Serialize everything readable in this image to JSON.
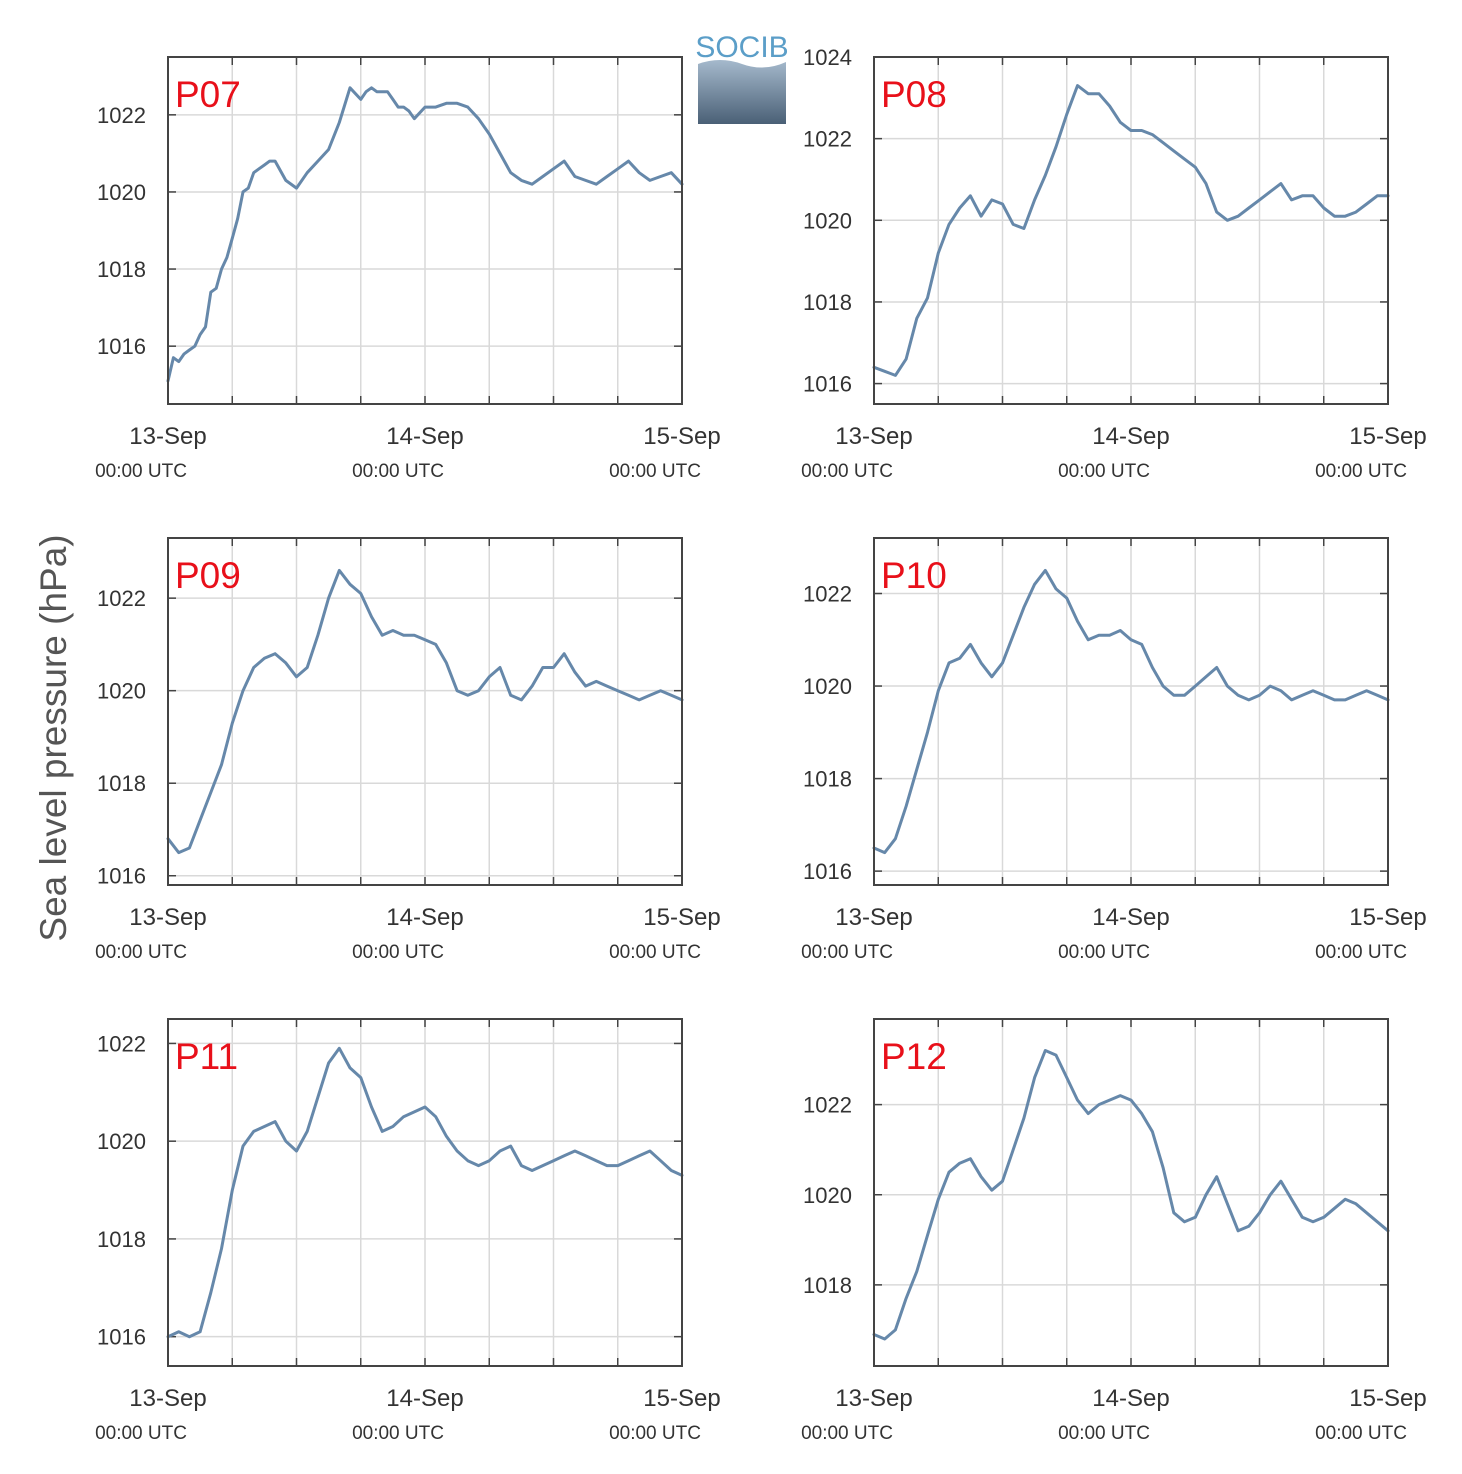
{
  "figure": {
    "ylabel": "Sea level pressure (hPa)",
    "logo_text": "SOCIB",
    "x_ticks": [
      {
        "date": "13-Sep",
        "time": "00:00 UTC"
      },
      {
        "date": "14-Sep",
        "time": "00:00 UTC"
      },
      {
        "date": "15-Sep",
        "time": "00:00 UTC"
      }
    ]
  },
  "colors": {
    "line": "#6688aa",
    "panel_label": "#e8101a",
    "axes": "#444444",
    "grid": "#d9d9d9",
    "logo_text": "#5b9ec8"
  },
  "chart_data": [
    {
      "type": "line",
      "label": "P07",
      "x_unit": "hours since 13-Sep 00:00 UTC",
      "xlim": [
        0,
        48
      ],
      "ylim": [
        1014.5,
        1023.5
      ],
      "yticks": [
        1016,
        1018,
        1020,
        1022
      ],
      "x": [
        0,
        0.5,
        1,
        1.5,
        2,
        2.5,
        3,
        3.5,
        4,
        4.5,
        5,
        5.5,
        6,
        6.5,
        7,
        7.5,
        8,
        8.5,
        9,
        9.5,
        10,
        11,
        12,
        13,
        14,
        15,
        16,
        17,
        18,
        18.5,
        19,
        19.5,
        20,
        20.5,
        21,
        21.5,
        22,
        22.5,
        23,
        24,
        25,
        26,
        27,
        28,
        29,
        30,
        31,
        32,
        33,
        34,
        35,
        36,
        37,
        38,
        39,
        40,
        41,
        42,
        43,
        44,
        45,
        46,
        47,
        48
      ],
      "y": [
        1015.1,
        1015.7,
        1015.6,
        1015.8,
        1015.9,
        1016.0,
        1016.3,
        1016.5,
        1017.4,
        1017.5,
        1018.0,
        1018.3,
        1018.8,
        1019.3,
        1020.0,
        1020.1,
        1020.5,
        1020.6,
        1020.7,
        1020.8,
        1020.8,
        1020.3,
        1020.1,
        1020.5,
        1020.8,
        1021.1,
        1021.8,
        1022.7,
        1022.4,
        1022.6,
        1022.7,
        1022.6,
        1022.6,
        1022.6,
        1022.4,
        1022.2,
        1022.2,
        1022.1,
        1021.9,
        1022.2,
        1022.2,
        1022.3,
        1022.3,
        1022.2,
        1021.9,
        1021.5,
        1021.0,
        1020.5,
        1020.3,
        1020.2,
        1020.4,
        1020.6,
        1020.8,
        1020.4,
        1020.3,
        1020.2,
        1020.4,
        1020.6,
        1020.8,
        1020.5,
        1020.3,
        1020.4,
        1020.5,
        1020.2
      ]
    },
    {
      "type": "line",
      "label": "P08",
      "x_unit": "hours since 13-Sep 00:00 UTC",
      "xlim": [
        0,
        48
      ],
      "ylim": [
        1015.5,
        1024
      ],
      "yticks": [
        1016,
        1018,
        1020,
        1022,
        1024
      ],
      "x": [
        0,
        1,
        2,
        3,
        4,
        5,
        6,
        7,
        8,
        9,
        10,
        11,
        12,
        13,
        14,
        15,
        16,
        17,
        18,
        19,
        20,
        21,
        22,
        23,
        24,
        25,
        26,
        27,
        28,
        29,
        30,
        31,
        32,
        33,
        34,
        35,
        36,
        37,
        38,
        39,
        40,
        41,
        42,
        43,
        44,
        45,
        46,
        47,
        48
      ],
      "y": [
        1016.4,
        1016.3,
        1016.2,
        1016.6,
        1017.6,
        1018.1,
        1019.2,
        1019.9,
        1020.3,
        1020.6,
        1020.1,
        1020.5,
        1020.4,
        1019.9,
        1019.8,
        1020.5,
        1021.1,
        1021.8,
        1022.6,
        1023.3,
        1023.1,
        1023.1,
        1022.8,
        1022.4,
        1022.2,
        1022.2,
        1022.1,
        1021.9,
        1021.7,
        1021.5,
        1021.3,
        1020.9,
        1020.2,
        1020.0,
        1020.1,
        1020.3,
        1020.5,
        1020.7,
        1020.9,
        1020.5,
        1020.6,
        1020.6,
        1020.3,
        1020.1,
        1020.1,
        1020.2,
        1020.4,
        1020.6,
        1020.6
      ]
    },
    {
      "type": "line",
      "label": "P09",
      "x_unit": "hours since 13-Sep 00:00 UTC",
      "xlim": [
        0,
        48
      ],
      "ylim": [
        1015.8,
        1023.3
      ],
      "yticks": [
        1016,
        1018,
        1020,
        1022
      ],
      "x": [
        0,
        1,
        2,
        3,
        4,
        5,
        6,
        7,
        8,
        9,
        10,
        11,
        12,
        13,
        14,
        15,
        16,
        17,
        18,
        19,
        20,
        21,
        22,
        23,
        24,
        25,
        26,
        27,
        28,
        29,
        30,
        31,
        32,
        33,
        34,
        35,
        36,
        37,
        38,
        39,
        40,
        41,
        42,
        43,
        44,
        45,
        46,
        47,
        48
      ],
      "y": [
        1016.8,
        1016.5,
        1016.6,
        1017.2,
        1017.8,
        1018.4,
        1019.3,
        1020.0,
        1020.5,
        1020.7,
        1020.8,
        1020.6,
        1020.3,
        1020.5,
        1021.2,
        1022.0,
        1022.6,
        1022.3,
        1022.1,
        1021.6,
        1021.2,
        1021.3,
        1021.2,
        1021.2,
        1021.1,
        1021.0,
        1020.6,
        1020.0,
        1019.9,
        1020.0,
        1020.3,
        1020.5,
        1019.9,
        1019.8,
        1020.1,
        1020.5,
        1020.5,
        1020.8,
        1020.4,
        1020.1,
        1020.2,
        1020.1,
        1020.0,
        1019.9,
        1019.8,
        1019.9,
        1020.0,
        1019.9,
        1019.8
      ]
    },
    {
      "type": "line",
      "label": "P10",
      "x_unit": "hours since 13-Sep 00:00 UTC",
      "xlim": [
        0,
        48
      ],
      "ylim": [
        1015.7,
        1023.2
      ],
      "yticks": [
        1016,
        1018,
        1020,
        1022
      ],
      "x": [
        0,
        1,
        2,
        3,
        4,
        5,
        6,
        7,
        8,
        9,
        10,
        11,
        12,
        13,
        14,
        15,
        16,
        17,
        18,
        19,
        20,
        21,
        22,
        23,
        24,
        25,
        26,
        27,
        28,
        29,
        30,
        31,
        32,
        33,
        34,
        35,
        36,
        37,
        38,
        39,
        40,
        41,
        42,
        43,
        44,
        45,
        46,
        47,
        48
      ],
      "y": [
        1016.5,
        1016.4,
        1016.7,
        1017.4,
        1018.2,
        1019.0,
        1019.9,
        1020.5,
        1020.6,
        1020.9,
        1020.5,
        1020.2,
        1020.5,
        1021.1,
        1021.7,
        1022.2,
        1022.5,
        1022.1,
        1021.9,
        1021.4,
        1021.0,
        1021.1,
        1021.1,
        1021.2,
        1021.0,
        1020.9,
        1020.4,
        1020.0,
        1019.8,
        1019.8,
        1020.0,
        1020.2,
        1020.4,
        1020.0,
        1019.8,
        1019.7,
        1019.8,
        1020.0,
        1019.9,
        1019.7,
        1019.8,
        1019.9,
        1019.8,
        1019.7,
        1019.7,
        1019.8,
        1019.9,
        1019.8,
        1019.7
      ]
    },
    {
      "type": "line",
      "label": "P11",
      "x_unit": "hours since 13-Sep 00:00 UTC",
      "xlim": [
        0,
        48
      ],
      "ylim": [
        1015.4,
        1022.5
      ],
      "yticks": [
        1016,
        1018,
        1020,
        1022
      ],
      "x": [
        0,
        1,
        2,
        3,
        4,
        5,
        6,
        7,
        8,
        9,
        10,
        11,
        12,
        13,
        14,
        15,
        16,
        17,
        18,
        19,
        20,
        21,
        22,
        23,
        24,
        25,
        26,
        27,
        28,
        29,
        30,
        31,
        32,
        33,
        34,
        35,
        36,
        37,
        38,
        39,
        40,
        41,
        42,
        43,
        44,
        45,
        46,
        47,
        48
      ],
      "y": [
        1016.0,
        1016.1,
        1016.0,
        1016.1,
        1016.9,
        1017.8,
        1019.0,
        1019.9,
        1020.2,
        1020.3,
        1020.4,
        1020.0,
        1019.8,
        1020.2,
        1020.9,
        1021.6,
        1021.9,
        1021.5,
        1021.3,
        1020.7,
        1020.2,
        1020.3,
        1020.5,
        1020.6,
        1020.7,
        1020.5,
        1020.1,
        1019.8,
        1019.6,
        1019.5,
        1019.6,
        1019.8,
        1019.9,
        1019.5,
        1019.4,
        1019.5,
        1019.6,
        1019.7,
        1019.8,
        1019.7,
        1019.6,
        1019.5,
        1019.5,
        1019.6,
        1019.7,
        1019.8,
        1019.6,
        1019.4,
        1019.3
      ]
    },
    {
      "type": "line",
      "label": "P12",
      "x_unit": "hours since 13-Sep 00:00 UTC",
      "xlim": [
        0,
        48
      ],
      "ylim": [
        1016.2,
        1023.9
      ],
      "yticks": [
        1018,
        1020,
        1022
      ],
      "x": [
        0,
        1,
        2,
        3,
        4,
        5,
        6,
        7,
        8,
        9,
        10,
        11,
        12,
        13,
        14,
        15,
        16,
        17,
        18,
        19,
        20,
        21,
        22,
        23,
        24,
        25,
        26,
        27,
        28,
        29,
        30,
        31,
        32,
        33,
        34,
        35,
        36,
        37,
        38,
        39,
        40,
        41,
        42,
        43,
        44,
        45,
        46,
        47,
        48
      ],
      "y": [
        1016.9,
        1016.8,
        1017.0,
        1017.7,
        1018.3,
        1019.1,
        1019.9,
        1020.5,
        1020.7,
        1020.8,
        1020.4,
        1020.1,
        1020.3,
        1021.0,
        1021.7,
        1022.6,
        1023.2,
        1023.1,
        1022.6,
        1022.1,
        1021.8,
        1022.0,
        1022.1,
        1022.2,
        1022.1,
        1021.8,
        1021.4,
        1020.6,
        1019.6,
        1019.4,
        1019.5,
        1020.0,
        1020.4,
        1019.8,
        1019.2,
        1019.3,
        1019.6,
        1020.0,
        1020.3,
        1019.9,
        1019.5,
        1019.4,
        1019.5,
        1019.7,
        1019.9,
        1019.8,
        1019.6,
        1019.4,
        1019.2
      ]
    }
  ]
}
